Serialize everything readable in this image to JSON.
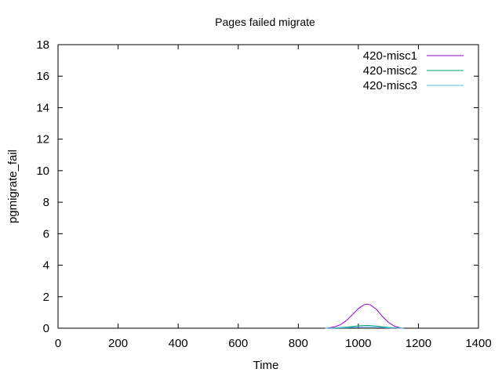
{
  "chart_data": {
    "type": "line",
    "title": "Pages failed migrate",
    "xlabel": "Time",
    "ylabel": "pgmigrate_fail",
    "xlim": [
      0,
      1400
    ],
    "ylim": [
      0,
      18
    ],
    "xticks": [
      0,
      200,
      400,
      600,
      800,
      1000,
      1200,
      1400
    ],
    "yticks": [
      0,
      2,
      4,
      6,
      8,
      10,
      12,
      14,
      16,
      18
    ],
    "grid": false,
    "legend_position": "top-right",
    "series": [
      {
        "name": "420-misc1",
        "color": "#9400d3",
        "x": [
          890,
          900,
          920,
          940,
          960,
          980,
          1000,
          1020,
          1030,
          1040,
          1060,
          1080,
          1100,
          1120,
          1140,
          1150
        ],
        "y": [
          0,
          0.02,
          0.08,
          0.22,
          0.48,
          0.85,
          1.25,
          1.5,
          1.53,
          1.48,
          1.2,
          0.75,
          0.38,
          0.13,
          0.02,
          0
        ]
      },
      {
        "name": "420-misc2",
        "color": "#009e73",
        "x": [
          890,
          920,
          960,
          1000,
          1030,
          1060,
          1100,
          1150
        ],
        "y": [
          0,
          0.02,
          0.07,
          0.15,
          0.18,
          0.14,
          0.05,
          0
        ]
      },
      {
        "name": "420-misc3",
        "color": "#56b4e9",
        "x": [
          890,
          920,
          960,
          1000,
          1030,
          1060,
          1100,
          1150
        ],
        "y": [
          0,
          0.01,
          0.03,
          0.07,
          0.09,
          0.07,
          0.02,
          0
        ]
      }
    ]
  }
}
